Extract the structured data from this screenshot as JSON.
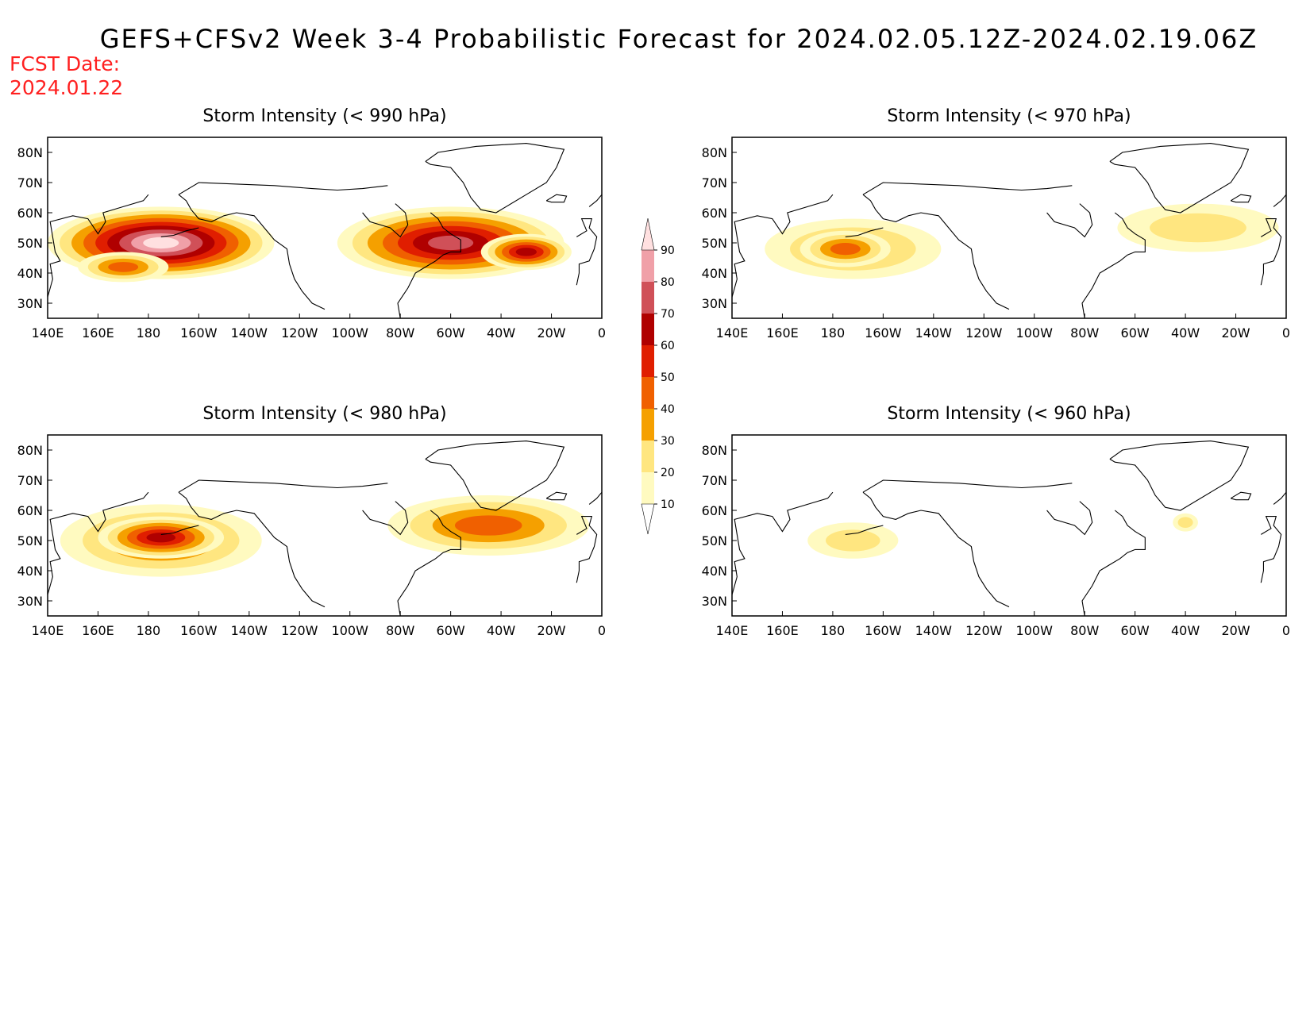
{
  "title": "GEFS+CFSv2 Week 3-4 Probabilistic Forecast for 2024.02.05.12Z-2024.02.19.06Z",
  "fcst_date_label": "FCST Date:",
  "fcst_date": "2024.01.22",
  "lon_ticks": [
    "140E",
    "160E",
    "180",
    "160W",
    "140W",
    "120W",
    "100W",
    "80W",
    "60W",
    "40W",
    "20W",
    "0"
  ],
  "lat_ticks": [
    "80N",
    "70N",
    "60N",
    "50N",
    "40N",
    "30N"
  ],
  "colorbar": {
    "labels": [
      "10",
      "20",
      "30",
      "40",
      "50",
      "60",
      "70",
      "80",
      "90"
    ],
    "colors": [
      "#fffac0",
      "#ffe680",
      "#f5a000",
      "#f06000",
      "#e01e00",
      "#b00000",
      "#d05058",
      "#f0a0a8",
      "#ffe0e0"
    ]
  },
  "colors": {
    "coastline": "#000000",
    "title_red": "#ff2020"
  },
  "panels": [
    {
      "title": "Storm Intensity (< 990 hPa)",
      "blobs": [
        {
          "lon": 185,
          "lat": 50,
          "rx": 45,
          "ry": 12,
          "level": 8
        },
        {
          "lon": 300,
          "lat": 50,
          "rx": 45,
          "ry": 12,
          "level": 6
        },
        {
          "lon": 170,
          "lat": 42,
          "rx": 18,
          "ry": 5,
          "level": 3
        },
        {
          "lon": 330,
          "lat": 47,
          "rx": 18,
          "ry": 6,
          "level": 5
        }
      ]
    },
    {
      "title": "Storm Intensity (< 970 hPa)",
      "blobs": [
        {
          "lon": 188,
          "lat": 48,
          "rx": 35,
          "ry": 10,
          "level": 2
        },
        {
          "lon": 185,
          "lat": 48,
          "rx": 18,
          "ry": 6,
          "level": 3
        },
        {
          "lon": 325,
          "lat": 55,
          "rx": 32,
          "ry": 8,
          "level": 1
        }
      ]
    },
    {
      "title": "Storm Intensity (< 980 hPa)",
      "blobs": [
        {
          "lon": 185,
          "lat": 50,
          "rx": 40,
          "ry": 12,
          "level": 3
        },
        {
          "lon": 185,
          "lat": 51,
          "rx": 25,
          "ry": 7,
          "level": 5
        },
        {
          "lon": 315,
          "lat": 55,
          "rx": 40,
          "ry": 10,
          "level": 3
        }
      ]
    },
    {
      "title": "Storm Intensity (< 960 hPa)",
      "blobs": [
        {
          "lon": 188,
          "lat": 50,
          "rx": 18,
          "ry": 6,
          "level": 1
        },
        {
          "lon": 320,
          "lat": 56,
          "rx": 5,
          "ry": 3,
          "level": 1
        }
      ]
    }
  ]
}
